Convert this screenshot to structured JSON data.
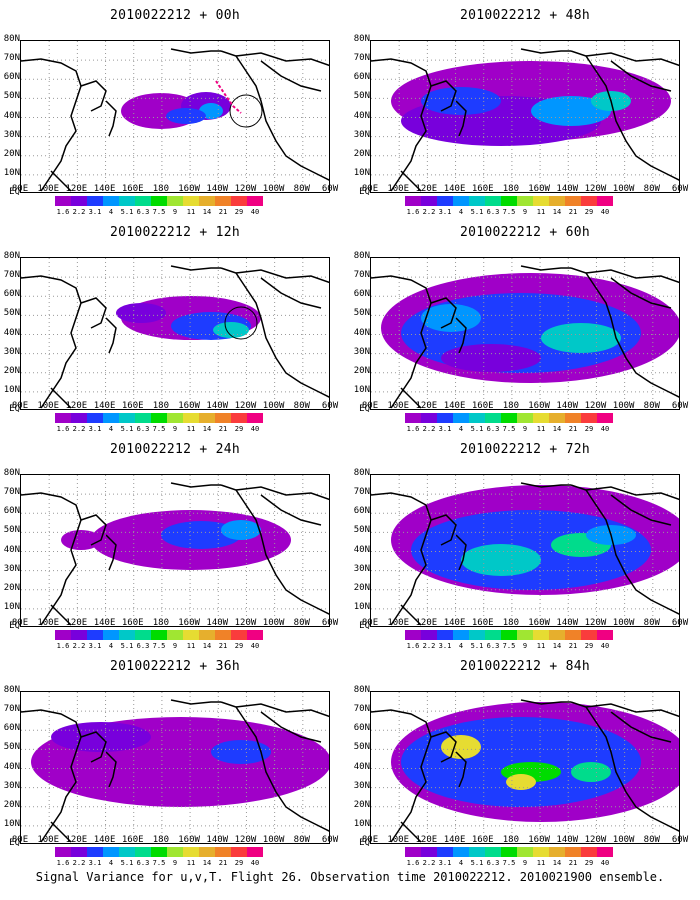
{
  "panels": [
    {
      "title": "2010022212 + 00h"
    },
    {
      "title": "2010022212 + 48h"
    },
    {
      "title": "2010022212 + 12h"
    },
    {
      "title": "2010022212 + 60h"
    },
    {
      "title": "2010022212 + 24h"
    },
    {
      "title": "2010022212 + 72h"
    },
    {
      "title": "2010022212 + 36h"
    },
    {
      "title": "2010022212 + 84h"
    }
  ],
  "lat_labels": [
    "80N",
    "70N",
    "60N",
    "50N",
    "40N",
    "30N",
    "20N",
    "10N",
    "EQ"
  ],
  "lon_labels": [
    "80E",
    "100E",
    "120E",
    "140E",
    "160E",
    "180",
    "160W",
    "140W",
    "120W",
    "100W",
    "80W",
    "60W"
  ],
  "colorbar": {
    "labels": [
      "1.6",
      "2.2",
      "3.1",
      "4",
      "5.1",
      "6.3",
      "7.5",
      "9",
      "11",
      "14",
      "21",
      "29",
      "40"
    ],
    "colors": [
      "#a000c8",
      "#7800dc",
      "#1e3cff",
      "#0096ff",
      "#00c8c8",
      "#00dc8c",
      "#00dc00",
      "#a0e632",
      "#e6dc32",
      "#e6af2d",
      "#f08228",
      "#fa3c3c",
      "#f00082"
    ]
  },
  "footer": "Signal Variance for u,v,T. Flight 26. Observation time 2010022212. 2010021900 ensemble."
}
